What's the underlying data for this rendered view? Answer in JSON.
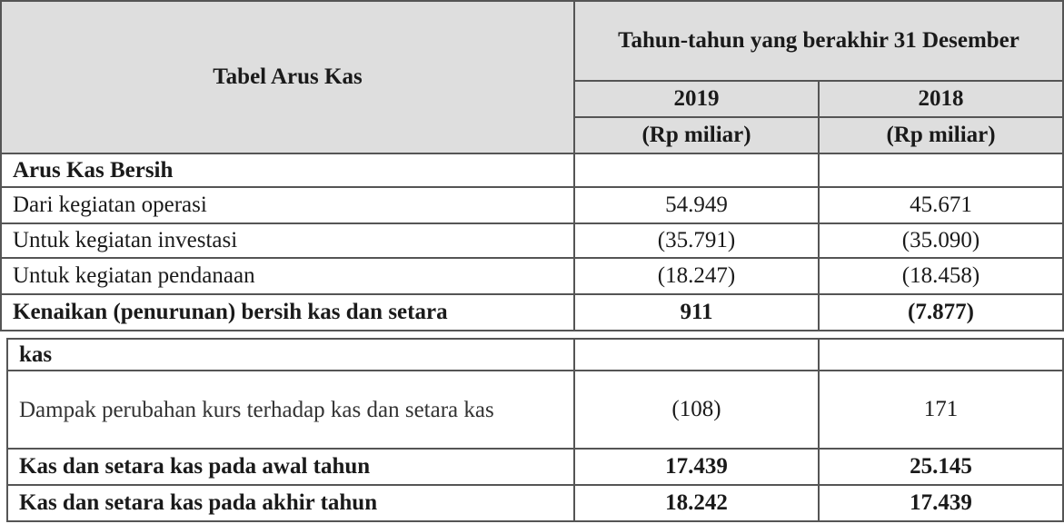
{
  "header": {
    "title": "Tabel Arus Kas",
    "period": "Tahun-tahun yang berakhir 31 Desember",
    "years": [
      "2019",
      "2018"
    ],
    "units": [
      "(Rp miliar)",
      "(Rp miliar)"
    ]
  },
  "rows": [
    {
      "label": "Arus Kas Bersih",
      "v2019": "",
      "v2018": ""
    },
    {
      "label": "Dari kegiatan operasi",
      "v2019": "54.949",
      "v2018": "45.671"
    },
    {
      "label": "Untuk kegiatan investasi",
      "v2019": "(35.791)",
      "v2018": "(35.090)"
    },
    {
      "label": "Untuk kegiatan pendanaan",
      "v2019": "(18.247)",
      "v2018": "(18.458)"
    },
    {
      "label": "Kenaikan (penurunan) bersih kas dan setara",
      "v2019": "911",
      "v2018": "(7.877)"
    }
  ],
  "rows2": [
    {
      "label": "kas",
      "v2019": "",
      "v2018": ""
    },
    {
      "label": "Dampak perubahan kurs terhadap kas dan setara kas",
      "v2019": "(108)",
      "v2018": "171"
    },
    {
      "label": "Kas dan setara kas pada awal tahun",
      "v2019": "17.439",
      "v2018": "25.145"
    },
    {
      "label": "Kas dan setara kas pada akhir tahun",
      "v2019": "18.242",
      "v2018": "17.439"
    }
  ]
}
